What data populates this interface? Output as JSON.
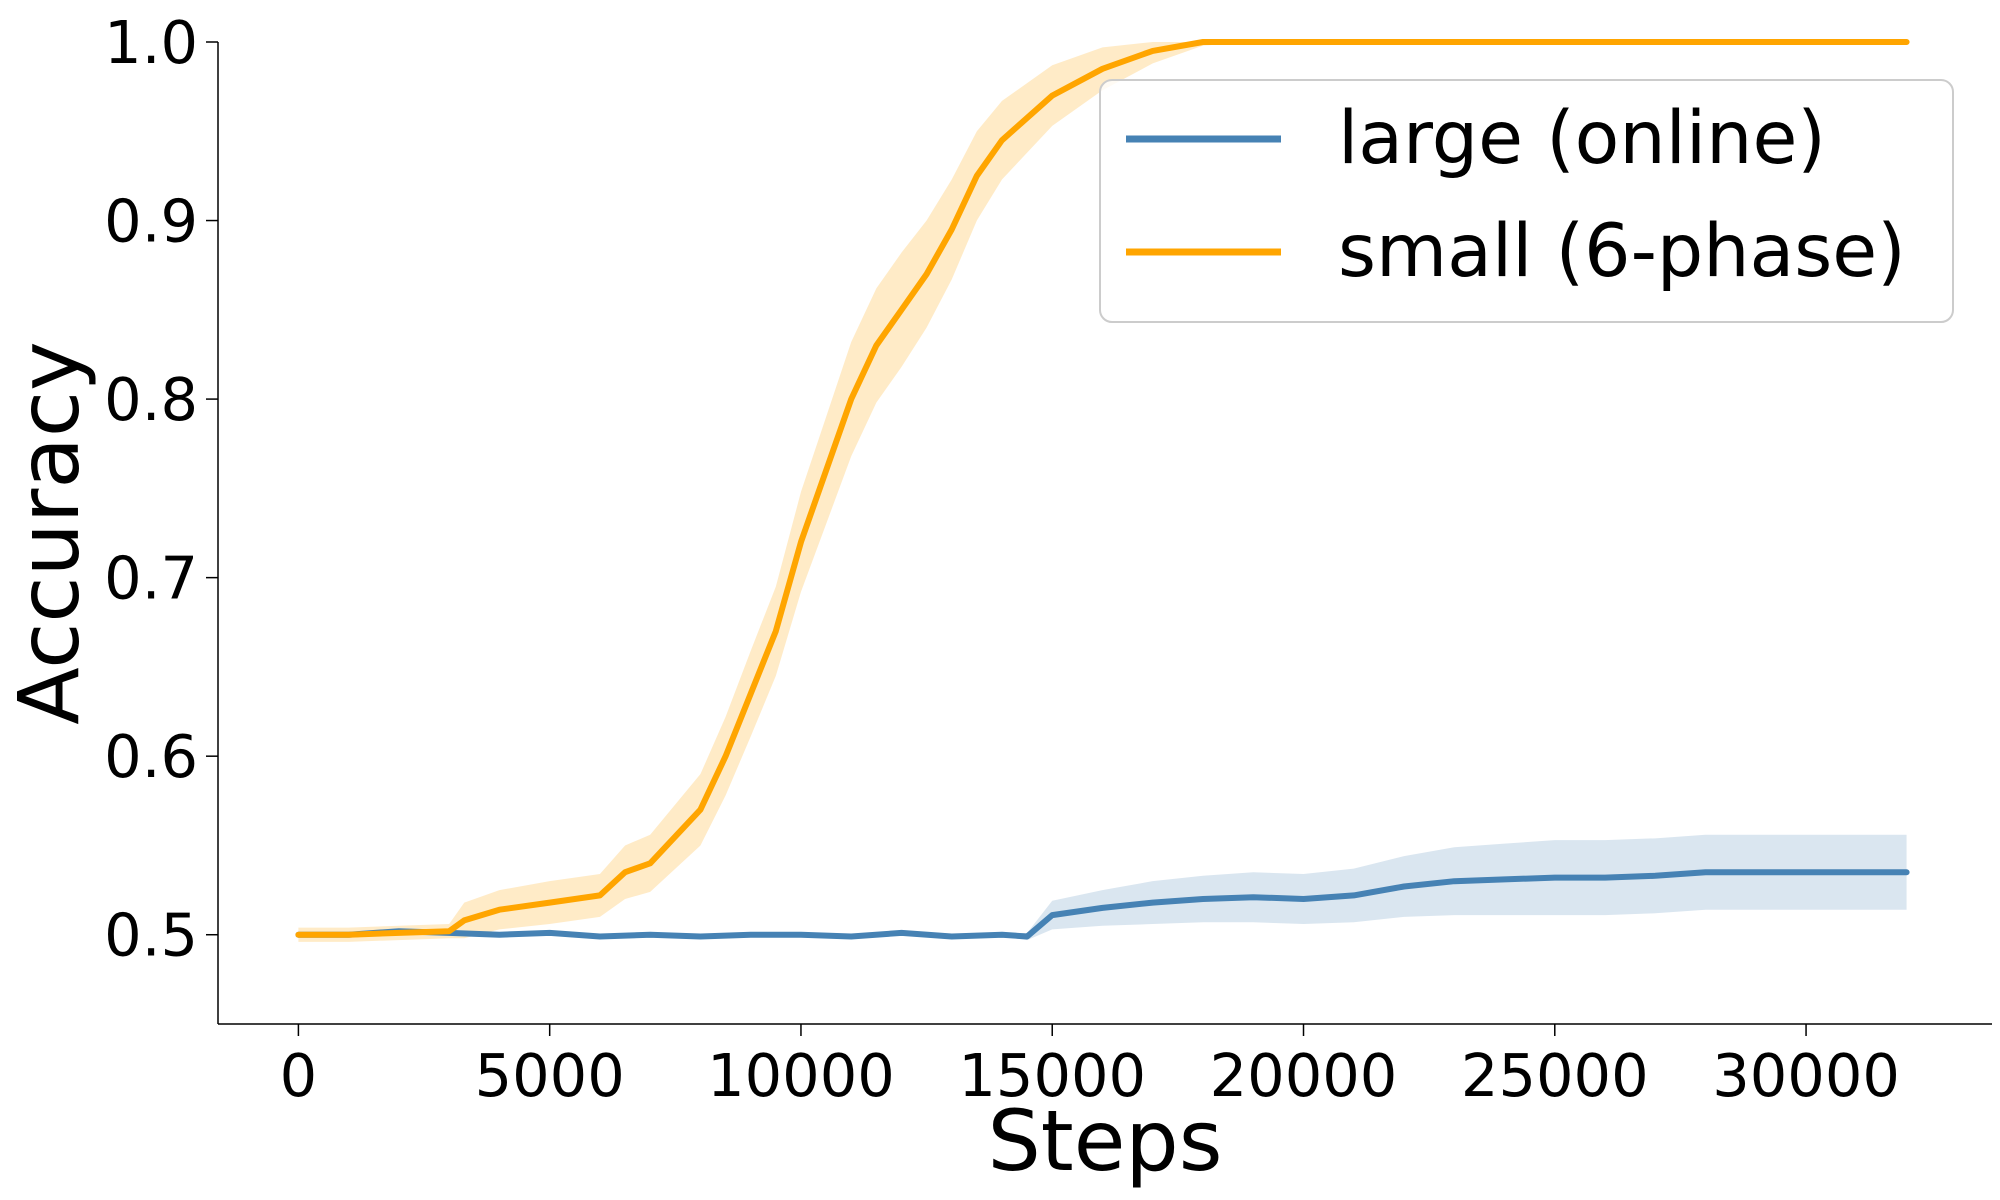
{
  "chart_data": {
    "type": "line",
    "xlabel": "Steps",
    "ylabel": "Accuracy",
    "xlim": [
      -1600,
      33700
    ],
    "ylim": [
      0.45,
      1.0
    ],
    "xticks": [
      0,
      5000,
      10000,
      15000,
      20000,
      25000,
      30000
    ],
    "yticks": [
      0.5,
      0.6,
      0.7,
      0.8,
      0.9,
      1.0
    ],
    "xtick_labels": [
      "0",
      "5000",
      "10000",
      "15000",
      "20000",
      "25000",
      "30000"
    ],
    "ytick_labels": [
      "0.5",
      "0.6",
      "0.7",
      "0.8",
      "0.9",
      "1.0"
    ],
    "grid": false,
    "legend_position": "upper-right",
    "series": [
      {
        "name": "large (online)",
        "color": "#4682b4",
        "x": [
          0,
          1000,
          2000,
          3000,
          4000,
          5000,
          6000,
          7000,
          8000,
          9000,
          10000,
          11000,
          12000,
          13000,
          14000,
          14500,
          15000,
          16000,
          17000,
          18000,
          19000,
          20000,
          21000,
          22000,
          23000,
          24000,
          25000,
          26000,
          27000,
          28000,
          29000,
          30000,
          31000,
          32000
        ],
        "y": [
          0.5,
          0.5,
          0.502,
          0.501,
          0.5,
          0.501,
          0.499,
          0.5,
          0.499,
          0.5,
          0.5,
          0.499,
          0.501,
          0.499,
          0.5,
          0.499,
          0.511,
          0.515,
          0.518,
          0.52,
          0.521,
          0.52,
          0.522,
          0.527,
          0.53,
          0.531,
          0.532,
          0.532,
          0.533,
          0.535,
          0.535,
          0.535,
          0.535,
          0.535
        ],
        "band": [
          0.001,
          0.001,
          0.001,
          0.001,
          0.001,
          0.001,
          0.001,
          0.001,
          0.001,
          0.001,
          0.001,
          0.001,
          0.001,
          0.001,
          0.001,
          0.002,
          0.008,
          0.01,
          0.012,
          0.013,
          0.014,
          0.014,
          0.015,
          0.017,
          0.019,
          0.02,
          0.021,
          0.021,
          0.021,
          0.021,
          0.021,
          0.021,
          0.021,
          0.021
        ]
      },
      {
        "name": "small (6-phase)",
        "color": "#ffa500",
        "x": [
          0,
          1000,
          2000,
          3000,
          3300,
          4000,
          5000,
          6000,
          6500,
          7000,
          8000,
          8500,
          9000,
          9500,
          10000,
          10500,
          11000,
          11500,
          12000,
          12500,
          13000,
          13500,
          14000,
          15000,
          16000,
          17000,
          18000,
          19000,
          20000,
          22000,
          25000,
          28000,
          30000,
          32000
        ],
        "y": [
          0.5,
          0.5,
          0.501,
          0.502,
          0.508,
          0.514,
          0.518,
          0.522,
          0.535,
          0.54,
          0.57,
          0.6,
          0.635,
          0.67,
          0.72,
          0.76,
          0.8,
          0.83,
          0.85,
          0.87,
          0.895,
          0.925,
          0.945,
          0.97,
          0.985,
          0.995,
          1.0,
          1.0,
          1.0,
          1.0,
          1.0,
          1.0,
          1.0,
          1.0
        ],
        "band": [
          0.004,
          0.004,
          0.004,
          0.004,
          0.01,
          0.011,
          0.012,
          0.012,
          0.015,
          0.016,
          0.02,
          0.022,
          0.024,
          0.025,
          0.028,
          0.03,
          0.032,
          0.032,
          0.032,
          0.03,
          0.028,
          0.025,
          0.022,
          0.017,
          0.012,
          0.007,
          0.002,
          0.0,
          0.0,
          0.0,
          0.0,
          0.0,
          0.0,
          0.0
        ]
      }
    ]
  }
}
